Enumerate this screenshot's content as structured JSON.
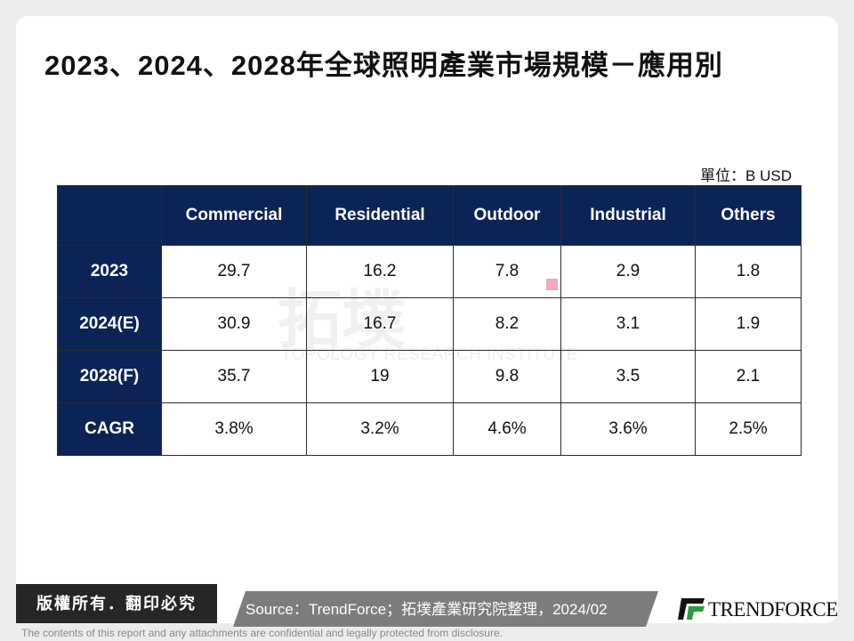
{
  "header": {
    "title": "2023、2024、2028年全球照明產業市場規模－應用別",
    "unit": "單位：B USD"
  },
  "table": {
    "columns": [
      "Commercial",
      "Residential",
      "Outdoor",
      "Industrial",
      "Others"
    ],
    "rows": [
      {
        "label": "2023",
        "cells": [
          "29.7",
          "16.2",
          "7.8",
          "2.9",
          "1.8"
        ]
      },
      {
        "label": "2024(E)",
        "cells": [
          "30.9",
          "16.7",
          "8.2",
          "3.1",
          "1.9"
        ]
      },
      {
        "label": "2028(F)",
        "cells": [
          "35.7",
          "19",
          "9.8",
          "3.5",
          "2.1"
        ]
      },
      {
        "label": "CAGR",
        "cells": [
          "3.8%",
          "3.2%",
          "4.6%",
          "3.6%",
          "2.5%"
        ]
      }
    ]
  },
  "watermark": {
    "name": "拓墣",
    "subtitle": "TOPOLOGY RESEARCH INSTITUTE"
  },
  "footer": {
    "copyright": "版權所有．翻印必究",
    "source": "Source：TrendForce；拓墣產業研究院整理，2024/02",
    "logo": "TRENDFORCE",
    "disclaimer": "The contents of this report and any attachments are confidential and legally protected from disclosure."
  }
}
